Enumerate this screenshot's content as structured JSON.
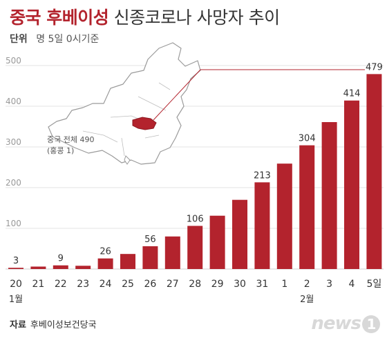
{
  "title_highlight": "중국 후베이성",
  "title_rest": "신종코로나 사망자 추이",
  "unit_label": "단위",
  "unit_text": "명  5일 0시기준",
  "map_note": {
    "line1": "중국 전체 490",
    "line2": "(홍콩 1)"
  },
  "source_label": "자료",
  "source_text": "후베이성보건당국",
  "logo_text": "news",
  "logo_badge": "1",
  "colors": {
    "bar": "#b3232d",
    "grid": "#e3e3e3",
    "map_fill": "#ffffff",
    "map_stroke": "#9a9a9a",
    "hubei": "#b3232d"
  },
  "chart_data": {
    "type": "bar",
    "categories": [
      "20",
      "21",
      "22",
      "23",
      "24",
      "25",
      "26",
      "27",
      "28",
      "29",
      "30",
      "31",
      "1",
      "2",
      "3",
      "4",
      "5일"
    ],
    "month_labels": [
      {
        "index": 0,
        "label": "1월"
      },
      {
        "index": 13,
        "label": "2월"
      }
    ],
    "values": [
      3,
      6,
      9,
      8,
      26,
      37,
      56,
      80,
      106,
      131,
      170,
      213,
      259,
      304,
      361,
      414,
      479
    ],
    "data_labels": {
      "0": "3",
      "2": "9",
      "4": "26",
      "6": "56",
      "8": "106",
      "11": "213",
      "13": "304",
      "15": "414",
      "16": "479"
    },
    "y_ticks": [
      "100",
      "200",
      "300",
      "400",
      "500"
    ],
    "ylim": [
      0,
      500
    ],
    "title": "중국 후베이성 신종코로나 사망자 추이",
    "grid": true
  }
}
